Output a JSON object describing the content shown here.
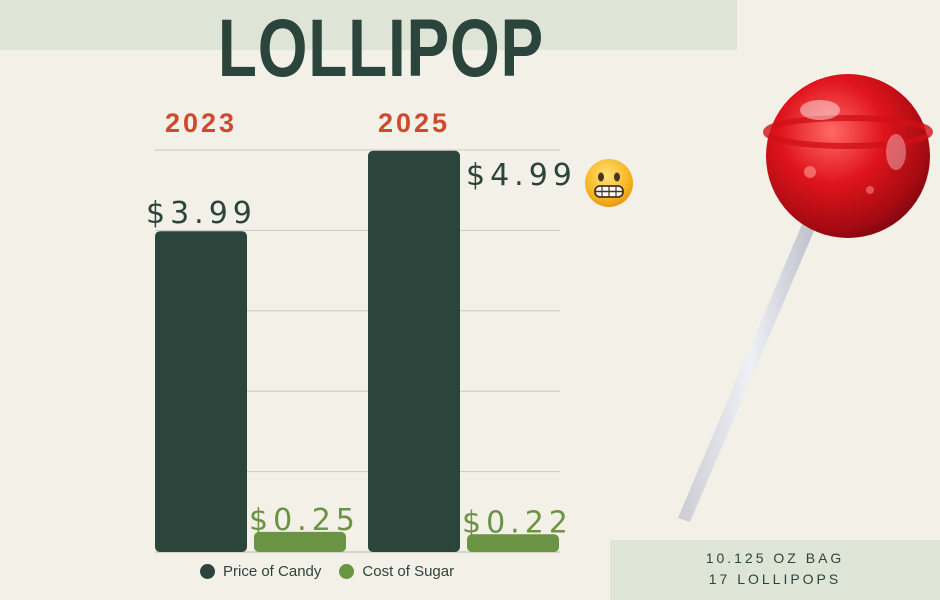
{
  "title": "LOLLIPOP",
  "footer": {
    "line1": "10.125 OZ BAG",
    "line2": "17 LOLLIPOPS"
  },
  "colors": {
    "candy": "#2b453c",
    "sugar": "#6a9343",
    "year_label": "#cf4a2c",
    "background": "#f3f0e8",
    "panel": "#dfe5d6"
  },
  "chart_data": {
    "type": "bar",
    "categories": [
      "2023",
      "2025"
    ],
    "series": [
      {
        "name": "Price of Candy",
        "values": [
          3.99,
          4.99
        ],
        "labels": [
          "$3.99",
          "$4.99"
        ]
      },
      {
        "name": "Cost of Sugar",
        "values": [
          0.25,
          0.22
        ],
        "labels": [
          "$0.25",
          "$0.22"
        ]
      }
    ],
    "ylim": [
      0,
      5
    ],
    "grid": true,
    "legend_position": "bottom"
  },
  "decorations": {
    "emoji": "grimacing-face-icon",
    "image": "lollipop-icon"
  }
}
